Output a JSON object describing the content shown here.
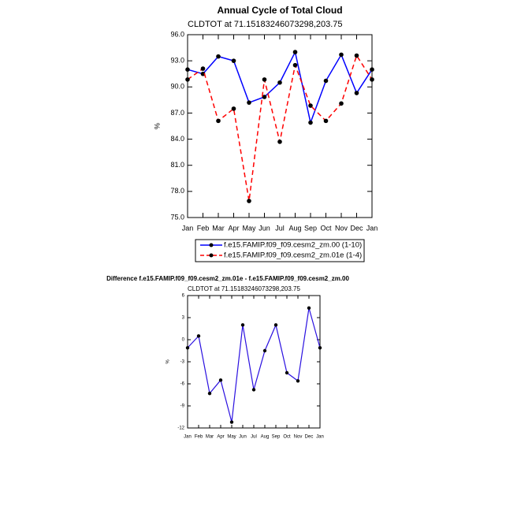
{
  "chart_data": [
    {
      "type": "line",
      "title": "Annual Cycle of Total Cloud",
      "subtitle": "CLDTOT at 71.15183246073298,203.75",
      "y_label": "%",
      "categories": [
        "Jan",
        "Feb",
        "Mar",
        "Apr",
        "May",
        "Jun",
        "Jul",
        "Aug",
        "Sep",
        "Oct",
        "Nov",
        "Dec",
        "Jan"
      ],
      "series": [
        {
          "name": "f.e15.FAMIP.f09_f09.cesm2_zm.00 (1-10)",
          "color": "#0000ff",
          "line_style": "solid",
          "values": [
            92.0,
            91.5,
            93.5,
            93.0,
            88.2,
            88.85,
            90.5,
            94.0,
            85.9,
            90.7,
            93.7,
            89.3,
            92.0
          ]
        },
        {
          "name": "f.e15.FAMIP.f09_f09.cesm2_zm.01e (1-4)",
          "color": "#ff0000",
          "line_style": "dashed",
          "values": [
            90.85,
            92.1,
            86.1,
            87.5,
            76.9,
            90.85,
            83.7,
            92.5,
            87.85,
            86.1,
            88.1,
            93.6,
            90.85
          ]
        }
      ],
      "ylim": [
        75,
        96
      ],
      "yticks": [
        {
          "value": 75,
          "label": "75.0"
        },
        {
          "value": 78,
          "label": "78.0"
        },
        {
          "value": 81,
          "label": "81.0"
        },
        {
          "value": 84,
          "label": "84.0"
        },
        {
          "value": 87,
          "label": "87.0"
        },
        {
          "value": 90,
          "label": "90.0"
        },
        {
          "value": 93,
          "label": "93.0"
        },
        {
          "value": 96,
          "label": "96.0"
        }
      ],
      "legend_position": "bottom"
    },
    {
      "type": "line",
      "title": "Difference f.e15.FAMIP.f09_f09.cesm2_zm.01e - f.e15.FAMIP.f09_f09.cesm2_zm.00",
      "subtitle": "CLDTOT at 71.15183246073298,203.75",
      "y_label": "%",
      "categories": [
        "Jan",
        "Feb",
        "Mar",
        "Apr",
        "May",
        "Jun",
        "Jul",
        "Aug",
        "Sep",
        "Oct",
        "Nov",
        "Dec",
        "Jan"
      ],
      "values": [
        -1.1,
        0.5,
        -7.3,
        -5.5,
        -11.2,
        2.0,
        -6.8,
        -1.5,
        2.0,
        -4.5,
        -5.6,
        4.3,
        -1.1
      ],
      "color": "#2a10e0",
      "ylim": [
        -12,
        6
      ],
      "yticks": [
        -12,
        -9,
        -6,
        -3,
        0,
        3,
        6
      ]
    }
  ]
}
